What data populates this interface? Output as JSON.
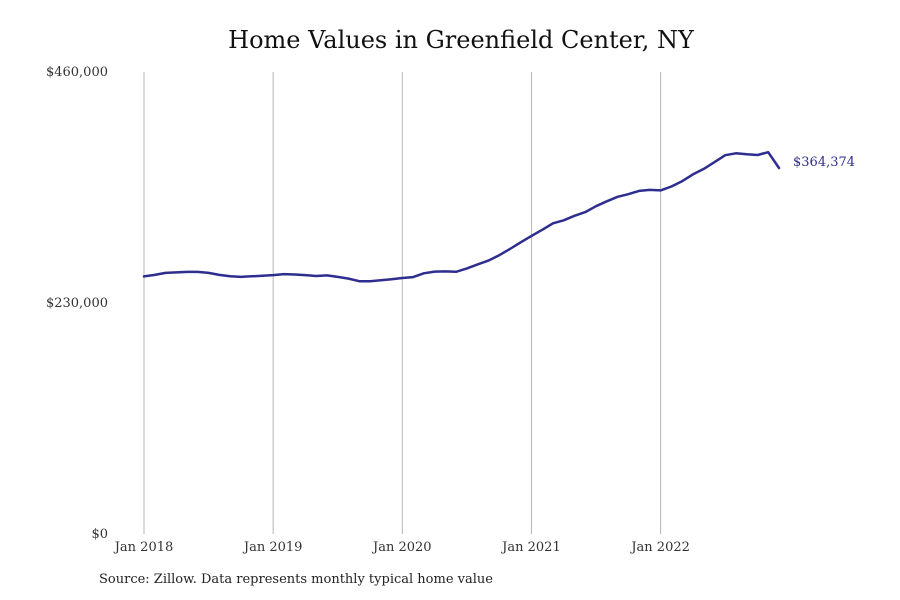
{
  "title": "Home Values in Greenfield Center, NY",
  "source": "Source: Zillow. Data represents monthly typical home value",
  "colors": {
    "line": "#2e2e8f",
    "grid": "#b5b5b5"
  },
  "chart_data": {
    "type": "line",
    "title": "Home Values in Greenfield Center, NY",
    "xlabel": "",
    "ylabel": "",
    "grid": "vertical",
    "ylim": [
      0,
      460000
    ],
    "xlim": [
      "2018-01",
      "2022-12"
    ],
    "y_ticks": [
      {
        "value": 0,
        "label": "$0"
      },
      {
        "value": 230000,
        "label": "$230,000"
      },
      {
        "value": 460000,
        "label": "$460,000"
      }
    ],
    "x_ticks": [
      {
        "value": "2018-01",
        "label": "Jan 2018"
      },
      {
        "value": "2019-01",
        "label": "Jan 2019"
      },
      {
        "value": "2020-01",
        "label": "Jan 2020"
      },
      {
        "value": "2021-01",
        "label": "Jan 2021"
      },
      {
        "value": "2022-01",
        "label": "Jan 2022"
      }
    ],
    "end_label": "$364,374",
    "series": [
      {
        "x": [
          "2018-01",
          "2018-02",
          "2018-03",
          "2018-04",
          "2018-05",
          "2018-06",
          "2018-07",
          "2018-08",
          "2018-09",
          "2018-10",
          "2018-11",
          "2018-12",
          "2019-01",
          "2019-02",
          "2019-03",
          "2019-04",
          "2019-05",
          "2019-06",
          "2019-07",
          "2019-08",
          "2019-09",
          "2019-10",
          "2019-11",
          "2019-12",
          "2020-01",
          "2020-02",
          "2020-03",
          "2020-04",
          "2020-05",
          "2020-06",
          "2020-07",
          "2020-08",
          "2020-09",
          "2020-10",
          "2020-11",
          "2020-12",
          "2021-01",
          "2021-02",
          "2021-03",
          "2021-04",
          "2021-05",
          "2021-06",
          "2021-07",
          "2021-08",
          "2021-09",
          "2021-10",
          "2021-11",
          "2021-12",
          "2022-01",
          "2022-02",
          "2022-03",
          "2022-04",
          "2022-05",
          "2022-06",
          "2022-07",
          "2022-08",
          "2022-09",
          "2022-10",
          "2022-11",
          "2022-12"
        ],
        "values": [
          256500,
          258000,
          260000,
          260500,
          261000,
          261000,
          260000,
          258000,
          256600,
          256000,
          256600,
          257100,
          257800,
          258800,
          258400,
          257800,
          256900,
          257500,
          256000,
          254300,
          251700,
          251700,
          252600,
          253600,
          254900,
          255800,
          259600,
          261300,
          261500,
          261100,
          264500,
          268400,
          272200,
          277600,
          283800,
          290400,
          296800,
          302900,
          309400,
          312300,
          316800,
          320500,
          326400,
          331300,
          335700,
          338300,
          341600,
          342600,
          342100,
          346000,
          351300,
          358000,
          363500,
          370200,
          377200,
          379100,
          378100,
          377400,
          380100,
          364374
        ]
      }
    ]
  }
}
